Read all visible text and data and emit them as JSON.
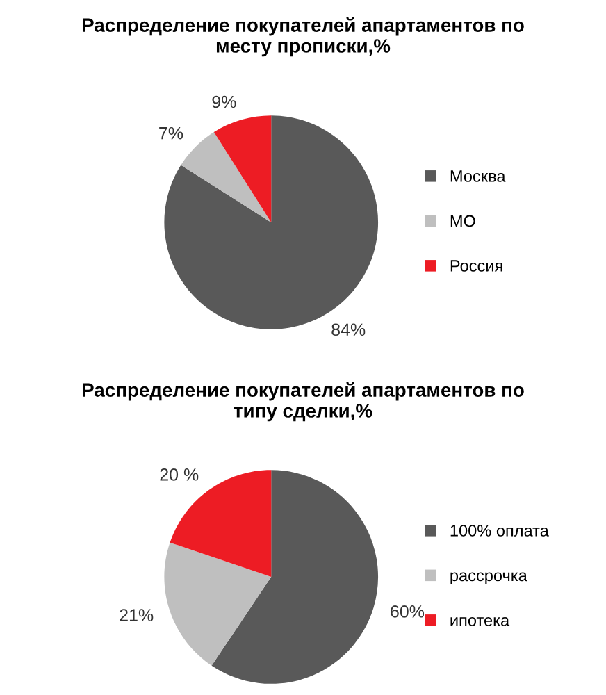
{
  "chart_data": [
    {
      "type": "pie",
      "title": "Распределение покупателей апартаментов по\nместу прописки,%",
      "categories": [
        "Москва",
        "МО",
        "Россия"
      ],
      "values": [
        84,
        7,
        9
      ],
      "colors": [
        "#595959",
        "#bfbfbf",
        "#ed1c24"
      ],
      "value_labels": [
        "84%",
        "7%",
        "9%"
      ],
      "legend": "right"
    },
    {
      "type": "pie",
      "title": "Распределение покупателей апартаментов по\nтипу сделки,%",
      "categories": [
        "100% оплата",
        "рассрочка",
        "ипотека"
      ],
      "values": [
        60,
        21,
        20
      ],
      "colors": [
        "#595959",
        "#bfbfbf",
        "#ed1c24"
      ],
      "value_labels": [
        "60%",
        "21%",
        "20 %"
      ],
      "legend": "right"
    }
  ]
}
